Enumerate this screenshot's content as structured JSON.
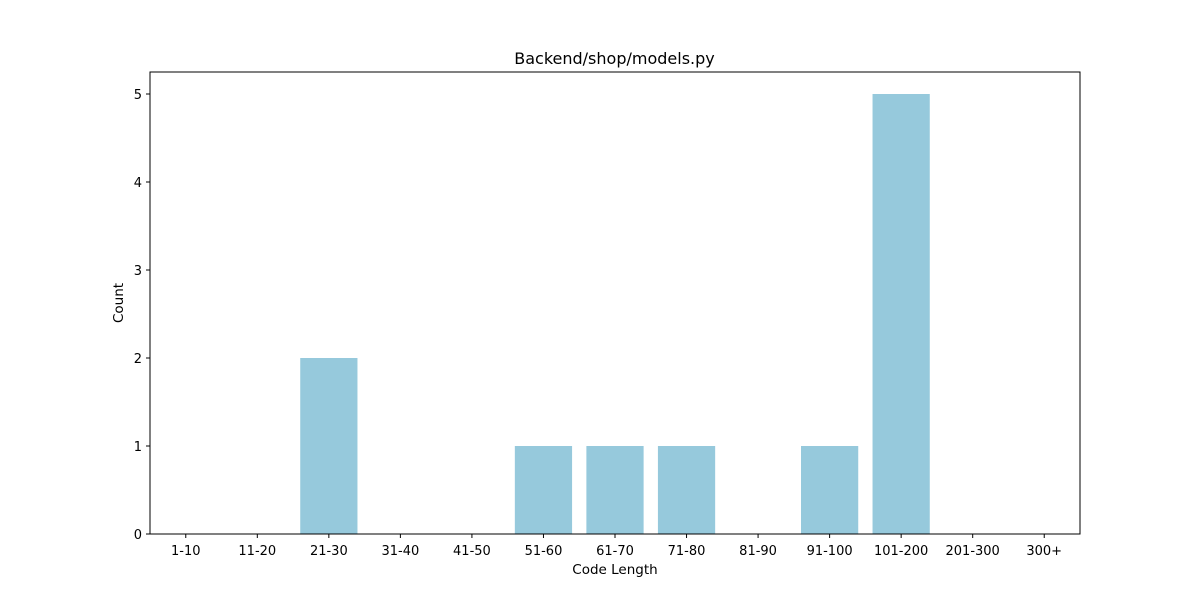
{
  "chart_data": {
    "type": "bar",
    "title": "Backend/shop/models.py",
    "xlabel": "Code Length",
    "ylabel": "Count",
    "categories": [
      "1-10",
      "11-20",
      "21-30",
      "31-40",
      "41-50",
      "51-60",
      "61-70",
      "71-80",
      "81-90",
      "91-100",
      "101-200",
      "201-300",
      "300+"
    ],
    "values": [
      0,
      0,
      2,
      0,
      0,
      1,
      1,
      1,
      0,
      1,
      5,
      0,
      0
    ],
    "ylim": [
      0,
      5.25
    ],
    "yticks": [
      0,
      1,
      2,
      3,
      4,
      5
    ],
    "grid": false,
    "bar_color": "#96c9dc"
  }
}
